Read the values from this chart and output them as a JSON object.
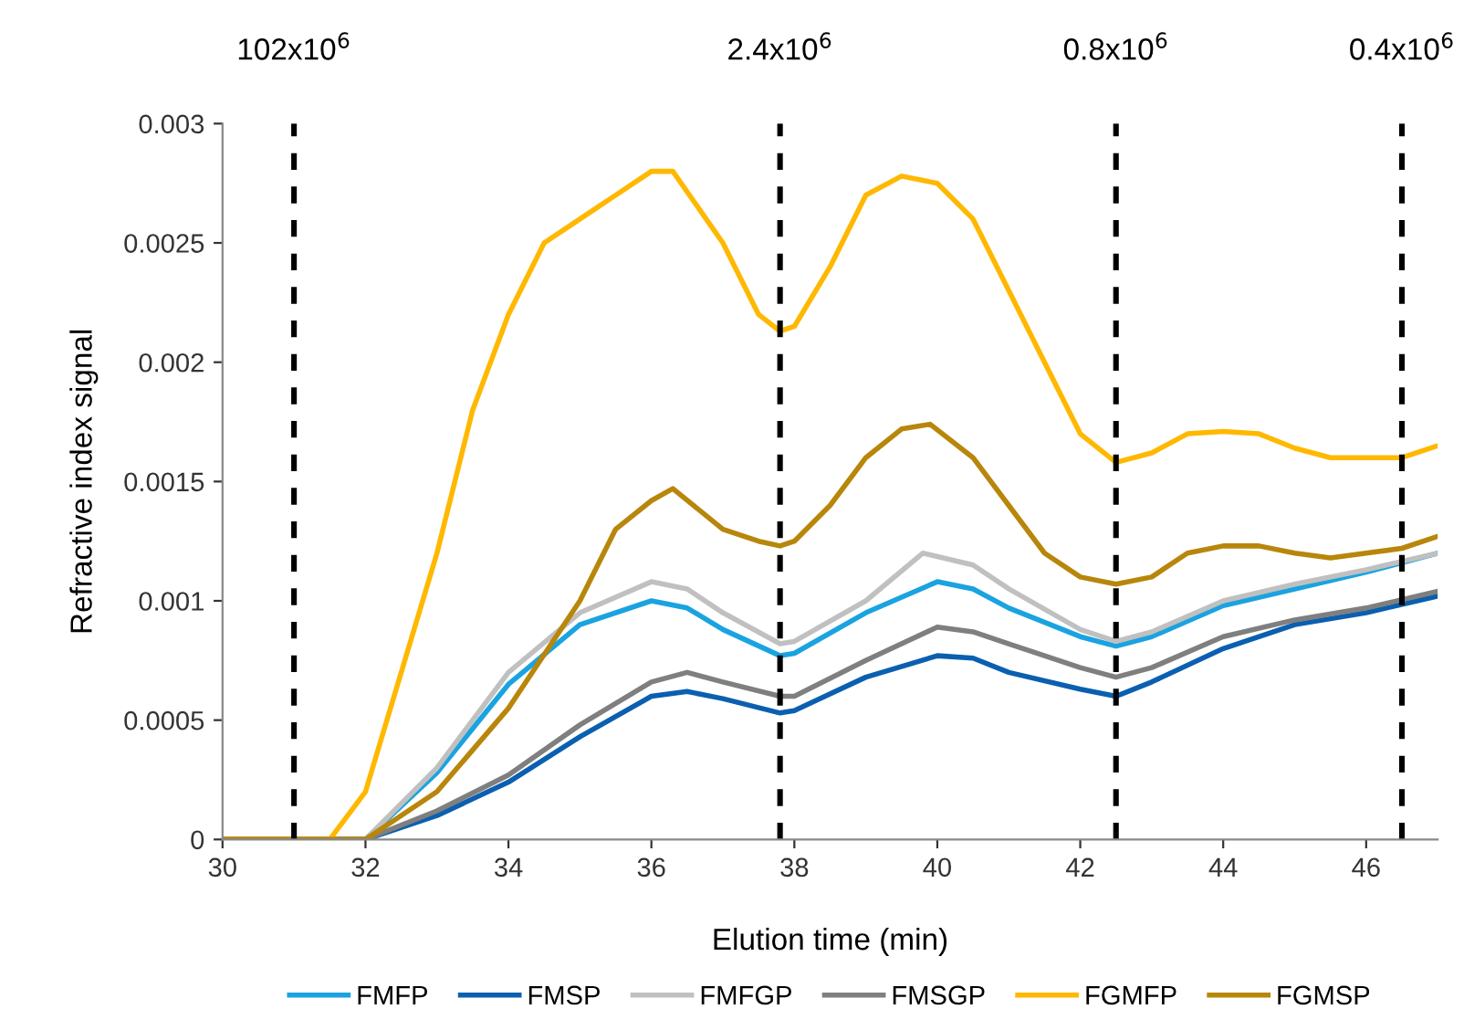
{
  "chart_data": {
    "type": "line",
    "xlabel": "Elution time (min)",
    "ylabel": "Refractive index signal",
    "xlim": [
      30,
      47
    ],
    "xticks": [
      30,
      32,
      34,
      36,
      38,
      40,
      42,
      44,
      46
    ],
    "ylim": [
      0,
      0.003
    ],
    "yticks": [
      0,
      0.0005,
      0.001,
      0.0015,
      0.002,
      0.0025,
      0.003
    ],
    "grid": false,
    "legend": "bottom",
    "marker": "none",
    "line_style": "solid",
    "ref_lines": [
      {
        "axis": "x",
        "value": 31,
        "label": "102x10$^{6}$",
        "color": "#000000",
        "line_style": "dashed"
      },
      {
        "axis": "x",
        "value": 37.8,
        "label": "2.4x10$^{6}$",
        "color": "#000000",
        "line_style": "dashed"
      },
      {
        "axis": "x",
        "value": 42.5,
        "label": "0.8x10$^{6}$",
        "color": "#000000",
        "line_style": "dashed"
      },
      {
        "axis": "x",
        "value": 46.5,
        "label": "0.4x10$^{6}$",
        "color": "#000000",
        "line_style": "dashed"
      }
    ],
    "series": [
      {
        "name": "FMFP",
        "color": "#1aa3e0",
        "x": [
          30,
          31,
          32,
          33,
          34,
          35,
          36,
          36.5,
          37,
          37.8,
          38,
          39,
          40,
          40.5,
          41,
          42,
          42.5,
          43,
          44,
          45,
          46,
          47
        ],
        "values": [
          0,
          0,
          0,
          0.00028,
          0.00065,
          0.0009,
          0.001,
          0.00097,
          0.00088,
          0.00077,
          0.00078,
          0.00095,
          0.00108,
          0.00105,
          0.00097,
          0.00085,
          0.00081,
          0.00085,
          0.00098,
          0.00105,
          0.00112,
          0.0012
        ]
      },
      {
        "name": "FMSP",
        "color": "#0b5fb0",
        "x": [
          30,
          31,
          32,
          33,
          34,
          35,
          36,
          36.5,
          37,
          37.8,
          38,
          39,
          40,
          40.5,
          41,
          42,
          42.5,
          43,
          44,
          45,
          46,
          47
        ],
        "values": [
          0,
          0,
          0,
          0.0001,
          0.00024,
          0.00043,
          0.0006,
          0.00062,
          0.00059,
          0.00053,
          0.00054,
          0.00068,
          0.00077,
          0.00076,
          0.0007,
          0.00063,
          0.0006,
          0.00066,
          0.0008,
          0.0009,
          0.00095,
          0.00102
        ]
      },
      {
        "name": "FMFGP",
        "color": "#c0c0c0",
        "x": [
          30,
          31,
          32,
          33,
          34,
          35,
          36,
          36.5,
          37,
          37.8,
          38,
          39,
          39.8,
          40.5,
          41,
          42,
          42.5,
          43,
          44,
          45,
          46,
          47
        ],
        "values": [
          0,
          0,
          0,
          0.0003,
          0.0007,
          0.00095,
          0.00108,
          0.00105,
          0.00095,
          0.00082,
          0.00083,
          0.001,
          0.0012,
          0.00115,
          0.00105,
          0.00088,
          0.00083,
          0.00087,
          0.001,
          0.00107,
          0.00113,
          0.0012
        ]
      },
      {
        "name": "FMSGP",
        "color": "#7f7f7f",
        "x": [
          30,
          31,
          32,
          33,
          34,
          35,
          36,
          36.5,
          37,
          37.8,
          38,
          39,
          40,
          40.5,
          41,
          42,
          42.5,
          43,
          44,
          45,
          46,
          47
        ],
        "values": [
          0,
          0,
          0,
          0.00012,
          0.00027,
          0.00048,
          0.00066,
          0.0007,
          0.00066,
          0.0006,
          0.0006,
          0.00075,
          0.00089,
          0.00087,
          0.00082,
          0.00072,
          0.00068,
          0.00072,
          0.00085,
          0.00092,
          0.00097,
          0.00104
        ]
      },
      {
        "name": "FGMFP",
        "color": "#ffb800",
        "x": [
          30,
          31,
          31.5,
          32,
          33,
          33.5,
          34,
          34.5,
          35,
          35.5,
          36,
          36.3,
          37,
          37.5,
          37.8,
          38,
          38.5,
          39,
          39.5,
          40,
          40.5,
          41,
          41.5,
          42,
          42.5,
          43,
          43.5,
          44,
          44.5,
          45,
          45.5,
          46,
          46.5,
          47
        ],
        "values": [
          0,
          0,
          0,
          0.0002,
          0.0012,
          0.0018,
          0.0022,
          0.0025,
          0.0026,
          0.0027,
          0.0028,
          0.0028,
          0.0025,
          0.0022,
          0.00213,
          0.00215,
          0.0024,
          0.0027,
          0.00278,
          0.00275,
          0.0026,
          0.0023,
          0.002,
          0.0017,
          0.00158,
          0.00162,
          0.0017,
          0.00171,
          0.0017,
          0.00164,
          0.0016,
          0.0016,
          0.0016,
          0.00165
        ]
      },
      {
        "name": "FGMSP",
        "color": "#b8860b",
        "x": [
          30,
          31,
          32,
          33,
          34,
          35,
          35.5,
          36,
          36.3,
          37,
          37.5,
          37.8,
          38,
          38.5,
          39,
          39.5,
          39.9,
          40.5,
          41,
          41.5,
          42,
          42.5,
          43,
          43.5,
          44,
          44.5,
          45,
          45.5,
          46,
          46.5,
          47
        ],
        "values": [
          0,
          0,
          0,
          0.0002,
          0.00055,
          0.001,
          0.0013,
          0.00142,
          0.00147,
          0.0013,
          0.00125,
          0.00123,
          0.00125,
          0.0014,
          0.0016,
          0.00172,
          0.00174,
          0.0016,
          0.0014,
          0.0012,
          0.0011,
          0.00107,
          0.0011,
          0.0012,
          0.00123,
          0.00123,
          0.0012,
          0.00118,
          0.0012,
          0.00122,
          0.00127
        ]
      }
    ]
  }
}
